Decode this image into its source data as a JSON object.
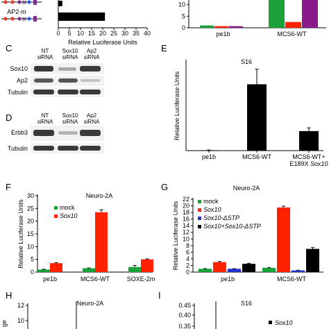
{
  "panels": {
    "A": {
      "construct_label": "AP2-m",
      "xlabel": "Relative Luciferase Units",
      "ticks": [
        0,
        5,
        10,
        15,
        20,
        25,
        30,
        35,
        40
      ],
      "chart_data": {
        "type": "bar",
        "orientation": "horizontal",
        "categories": [
          "",
          "AP2-m"
        ],
        "values": [
          1.8,
          21
        ],
        "xlim": [
          0,
          40
        ],
        "xlabel": "Relative Luciferase Units",
        "colors": [
          "#000000",
          "#000000"
        ]
      }
    },
    "B": {
      "chart_data": {
        "type": "bar",
        "categories": [
          "pe1b",
          "MCS6-WT"
        ],
        "series": [
          {
            "values": [
              1.0,
              15
            ],
            "color": "#1aa13a"
          },
          {
            "values": [
              0.7,
              2.5
            ],
            "color": "#ff2200"
          },
          {
            "values": [
              0.7,
              15
            ],
            "color": "#8a1a8a"
          }
        ],
        "ylim": [
          0,
          15
        ],
        "yticks": [
          0,
          5,
          10
        ]
      }
    },
    "C": {
      "headers": [
        [
          "NT",
          "siRNA"
        ],
        [
          "Sox10",
          "siRNA"
        ],
        [
          "Ap2",
          "siRNA"
        ]
      ],
      "rows": [
        "Sox10",
        "Ap2",
        "Tubulin"
      ]
    },
    "D": {
      "headers": [
        [
          "NT",
          "siRNA"
        ],
        [
          "Sox10",
          "siRNA"
        ],
        [
          "Ap2",
          "siRNA"
        ]
      ],
      "rows": [
        "Erbb3",
        "Tubulin"
      ]
    },
    "E": {
      "title": "S16",
      "ylabel": "Relative Luciferase Units",
      "chart_data": {
        "type": "bar",
        "title": "S16",
        "ylabel": "Relative Luciferase Units",
        "categories": [
          "pe1b",
          "MCS6-WT",
          "MCS6-WT+ E189X Sox10"
        ],
        "category_lines": [
          [
            "pe1b"
          ],
          [
            "MCS6-WT"
          ],
          [
            "MCS6-WT+",
            "E189X Sox10"
          ]
        ],
        "values": [
          1,
          163,
          48
        ],
        "errors": [
          0.5,
          37,
          8
        ],
        "ylim": [
          0,
          220
        ],
        "color": "#000000"
      }
    },
    "F": {
      "title": "Neuro-2A",
      "ylabel": "Relative Luciferase Units",
      "chart_data": {
        "type": "bar",
        "title": "Neuro-2A",
        "ylabel": "Relative Luciferase Units",
        "categories": [
          "pe1b",
          "MCS6-WT",
          "SOXE-2m"
        ],
        "series": [
          {
            "name": "mock",
            "values": [
              1.0,
              1.5,
              2.0
            ],
            "errors": [
              0.1,
              0.1,
              0.6
            ],
            "color": "#1aa13a"
          },
          {
            "name": "Sox10",
            "values": [
              3.5,
              23.5,
              5.0
            ],
            "errors": [
              0.2,
              1.0,
              0.2
            ],
            "color": "#ff2200"
          }
        ],
        "ylim": [
          0,
          30
        ],
        "yticks": [
          0,
          5,
          10,
          15,
          20,
          25,
          30
        ],
        "legend": "top-left"
      }
    },
    "G": {
      "title": "Neuro-2A",
      "ylabel": "Relative Luciferase Units",
      "chart_data": {
        "type": "bar",
        "title": "Neuro-2A",
        "ylabel": "Relative Luciferase Units",
        "categories": [
          "pe1b",
          "MCS6-WT"
        ],
        "series": [
          {
            "name": "mock",
            "values": [
              1.0,
              1.3
            ],
            "errors": [
              0.05,
              0.05
            ],
            "color": "#1aa13a"
          },
          {
            "name": "Sox10",
            "values": [
              3.0,
              19.5
            ],
            "errors": [
              0.2,
              0.4
            ],
            "color": "#ff2200"
          },
          {
            "name": "Sox10-ΔSTP",
            "values": [
              1.0,
              0.5
            ],
            "errors": [
              0.05,
              0.05
            ],
            "color": "#2233cc"
          },
          {
            "name": "Sox10+Sox10-ΔSTP",
            "values": [
              2.5,
              7.0
            ],
            "errors": [
              0.15,
              0.4
            ],
            "color": "#000000"
          }
        ],
        "ylim": [
          0,
          22
        ],
        "yticks": [
          0,
          2,
          4,
          6,
          8,
          10,
          12,
          14,
          16,
          18,
          20,
          22
        ],
        "legend": "top-left"
      }
    },
    "H": {
      "title": "Neuro-2A",
      "ylabel_fragment": "ge",
      "chart_data": {
        "type": "bar",
        "title": "Neuro-2A",
        "ylim": [
          0,
          12
        ],
        "yticks": [
          10,
          12
        ]
      }
    },
    "I": {
      "title": "S16",
      "legend_entry": "Sox10",
      "chart_data": {
        "type": "bar",
        "title": "S16",
        "ylim": [
          0,
          0.45
        ],
        "yticks": [
          0.35,
          0.4,
          0.45
        ],
        "legend": "top-right"
      }
    }
  }
}
